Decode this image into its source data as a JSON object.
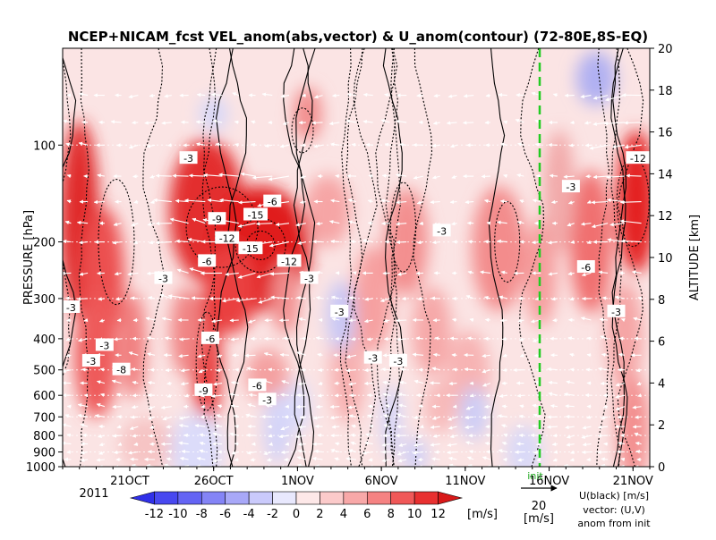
{
  "chart_data": {
    "type": "heatmap",
    "title": "NCEP+NICAM_fcst VEL_anom(abs,vector) & U_anom(contour)   (72-80E,8S-EQ)",
    "ylabel_left": "PRESSURE [hPa]",
    "ylabel_right": "ALTITUDE [km]",
    "y_left_ticks": [
      100,
      200,
      300,
      400,
      500,
      600,
      700,
      800,
      900,
      1000
    ],
    "y_right_ticks": [
      0,
      2,
      4,
      6,
      8,
      10,
      12,
      14,
      16,
      18,
      20
    ],
    "x_ticks": [
      "21OCT",
      "26OCT",
      "1NOV",
      "6NOV",
      "11NOV",
      "16NOV",
      "21NOV"
    ],
    "x_year": "2011",
    "init_label": "init",
    "colorbar": {
      "ticks": [
        "-12",
        "-10",
        "-8",
        "-6",
        "-4",
        "-2",
        "0",
        "2",
        "4",
        "6",
        "8",
        "10",
        "12"
      ],
      "unit": "[m/s]",
      "colors": [
        "#3030e8",
        "#4848f0",
        "#6464f4",
        "#8484f6",
        "#a8a8f8",
        "#cacafb",
        "#e8e8fd",
        "#fde8e8",
        "#fbcaca",
        "#f8a8a8",
        "#f58282",
        "#f05858",
        "#e83030",
        "#d81818"
      ]
    },
    "vector_legend": {
      "value": "20",
      "unit": "[m/s]"
    },
    "legend_note": [
      "U(black) [m/s]",
      "vector: (U,V)",
      "anom from init"
    ],
    "contour_labels": [
      {
        "day": 7.5,
        "p": 110,
        "text": "-3"
      },
      {
        "day": 9.2,
        "p": 170,
        "text": "-9"
      },
      {
        "day": 9.8,
        "p": 195,
        "text": "-12"
      },
      {
        "day": 11.5,
        "p": 165,
        "text": "-15"
      },
      {
        "day": 11.2,
        "p": 210,
        "text": "-15"
      },
      {
        "day": 13.5,
        "p": 230,
        "text": "-12"
      },
      {
        "day": 12.5,
        "p": 150,
        "text": "-6"
      },
      {
        "day": 8.6,
        "p": 230,
        "text": "-6"
      },
      {
        "day": 8.8,
        "p": 400,
        "text": "-6"
      },
      {
        "day": 8.4,
        "p": 580,
        "text": "-9"
      },
      {
        "day": 3.5,
        "p": 500,
        "text": "-8"
      },
      {
        "day": 1.7,
        "p": 470,
        "text": "-3"
      },
      {
        "day": 11.6,
        "p": 560,
        "text": "-6"
      },
      {
        "day": 12.2,
        "p": 620,
        "text": "-3"
      },
      {
        "day": 16.5,
        "p": 330,
        "text": "-3"
      },
      {
        "day": 18.5,
        "p": 460,
        "text": "-3"
      },
      {
        "day": 22.6,
        "p": 185,
        "text": "-3"
      },
      {
        "day": 30.3,
        "p": 135,
        "text": "-3"
      },
      {
        "day": 31.2,
        "p": 240,
        "text": "-6"
      },
      {
        "day": 34.3,
        "p": 110,
        "text": "-12"
      },
      {
        "day": 33.0,
        "p": 330,
        "text": "-3"
      },
      {
        "day": 20.0,
        "p": 470,
        "text": "-3"
      },
      {
        "day": 2.5,
        "p": 420,
        "text": "-3"
      },
      {
        "day": 0.5,
        "p": 320,
        "text": "-3"
      },
      {
        "day": 6.0,
        "p": 260,
        "text": "-3"
      },
      {
        "day": 14.7,
        "p": 260,
        "text": "-3"
      }
    ]
  }
}
